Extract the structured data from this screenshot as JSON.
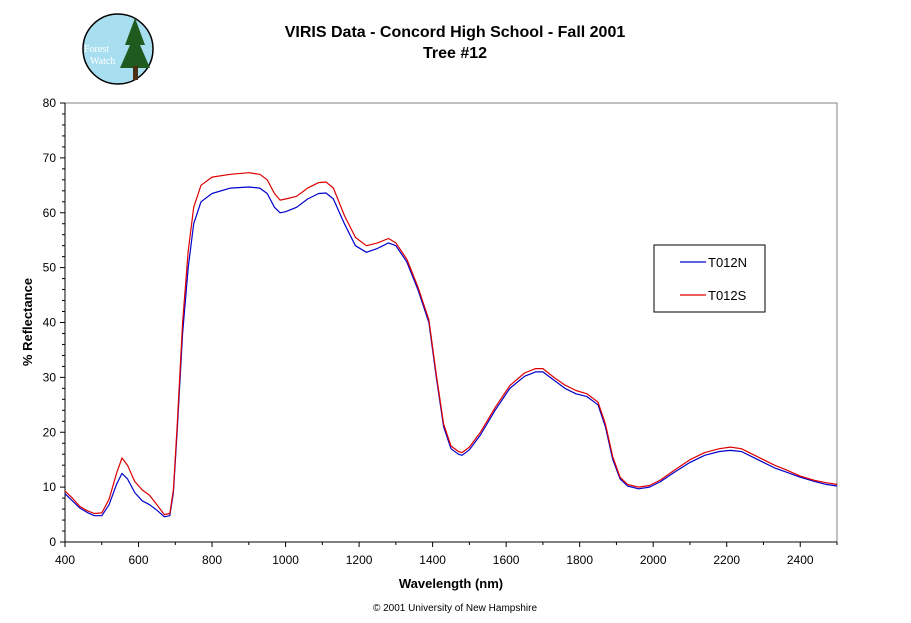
{
  "logo": {
    "line1": "Forest",
    "line2": "Watch"
  },
  "footer": {
    "copyright": "© 2001 University of New Hampshire"
  },
  "chart_data": {
    "type": "line",
    "title": "VIRIS Data - Concord High School - Fall 2001",
    "subtitle": "Tree #12",
    "xlabel": "Wavelength (nm)",
    "ylabel": "% Reflectance",
    "xlim": [
      400,
      2500
    ],
    "ylim": [
      0,
      80
    ],
    "xticks": [
      400,
      600,
      800,
      1000,
      1200,
      1400,
      1600,
      1800,
      2000,
      2200,
      2400
    ],
    "yticks": [
      0,
      10,
      20,
      30,
      40,
      50,
      60,
      70,
      80
    ],
    "grid": false,
    "legend": "right",
    "series": [
      {
        "name": "T012N",
        "color": "#0000cc",
        "points": [
          [
            400,
            8.8
          ],
          [
            420,
            7.5
          ],
          [
            440,
            6.2
          ],
          [
            460,
            5.4
          ],
          [
            480,
            4.8
          ],
          [
            500,
            4.8
          ],
          [
            520,
            6.8
          ],
          [
            540,
            10.5
          ],
          [
            555,
            12.5
          ],
          [
            570,
            11.5
          ],
          [
            590,
            9.0
          ],
          [
            610,
            7.5
          ],
          [
            630,
            6.8
          ],
          [
            650,
            5.8
          ],
          [
            670,
            4.6
          ],
          [
            685,
            4.8
          ],
          [
            695,
            9.0
          ],
          [
            705,
            20.0
          ],
          [
            720,
            38.0
          ],
          [
            735,
            50.0
          ],
          [
            750,
            58.0
          ],
          [
            770,
            62.0
          ],
          [
            800,
            63.5
          ],
          [
            850,
            64.5
          ],
          [
            900,
            64.7
          ],
          [
            930,
            64.5
          ],
          [
            950,
            63.5
          ],
          [
            970,
            61.0
          ],
          [
            985,
            60.0
          ],
          [
            1000,
            60.2
          ],
          [
            1030,
            61.0
          ],
          [
            1060,
            62.5
          ],
          [
            1090,
            63.5
          ],
          [
            1110,
            63.6
          ],
          [
            1130,
            62.5
          ],
          [
            1160,
            58.0
          ],
          [
            1190,
            54.0
          ],
          [
            1220,
            52.8
          ],
          [
            1250,
            53.5
          ],
          [
            1280,
            54.5
          ],
          [
            1300,
            54.0
          ],
          [
            1330,
            51.0
          ],
          [
            1360,
            46.0
          ],
          [
            1390,
            40.0
          ],
          [
            1410,
            30.0
          ],
          [
            1430,
            21.0
          ],
          [
            1450,
            17.0
          ],
          [
            1470,
            16.0
          ],
          [
            1480,
            15.8
          ],
          [
            1500,
            16.8
          ],
          [
            1530,
            19.5
          ],
          [
            1570,
            24.0
          ],
          [
            1610,
            28.0
          ],
          [
            1650,
            30.2
          ],
          [
            1680,
            31.0
          ],
          [
            1700,
            31.0
          ],
          [
            1730,
            29.5
          ],
          [
            1760,
            28.0
          ],
          [
            1790,
            27.0
          ],
          [
            1820,
            26.5
          ],
          [
            1850,
            25.0
          ],
          [
            1870,
            21.0
          ],
          [
            1890,
            15.0
          ],
          [
            1910,
            11.5
          ],
          [
            1930,
            10.2
          ],
          [
            1960,
            9.7
          ],
          [
            1990,
            10.0
          ],
          [
            2020,
            11.0
          ],
          [
            2060,
            12.8
          ],
          [
            2100,
            14.5
          ],
          [
            2140,
            15.8
          ],
          [
            2180,
            16.5
          ],
          [
            2210,
            16.7
          ],
          [
            2240,
            16.5
          ],
          [
            2270,
            15.5
          ],
          [
            2300,
            14.5
          ],
          [
            2330,
            13.5
          ],
          [
            2360,
            12.8
          ],
          [
            2400,
            11.8
          ],
          [
            2440,
            11.0
          ],
          [
            2470,
            10.5
          ],
          [
            2500,
            10.2
          ]
        ]
      },
      {
        "name": "T012S",
        "color": "#dd0000",
        "points": [
          [
            400,
            9.3
          ],
          [
            420,
            8.0
          ],
          [
            440,
            6.5
          ],
          [
            460,
            5.7
          ],
          [
            480,
            5.2
          ],
          [
            500,
            5.3
          ],
          [
            520,
            7.8
          ],
          [
            540,
            12.5
          ],
          [
            555,
            15.3
          ],
          [
            570,
            14.0
          ],
          [
            590,
            11.0
          ],
          [
            610,
            9.5
          ],
          [
            630,
            8.5
          ],
          [
            650,
            6.8
          ],
          [
            670,
            5.0
          ],
          [
            685,
            5.2
          ],
          [
            695,
            9.5
          ],
          [
            705,
            21.0
          ],
          [
            720,
            40.0
          ],
          [
            735,
            53.0
          ],
          [
            750,
            61.0
          ],
          [
            770,
            65.0
          ],
          [
            800,
            66.5
          ],
          [
            850,
            67.0
          ],
          [
            900,
            67.3
          ],
          [
            930,
            67.0
          ],
          [
            950,
            66.0
          ],
          [
            970,
            63.5
          ],
          [
            985,
            62.3
          ],
          [
            1000,
            62.5
          ],
          [
            1030,
            63.0
          ],
          [
            1060,
            64.5
          ],
          [
            1090,
            65.5
          ],
          [
            1110,
            65.6
          ],
          [
            1130,
            64.5
          ],
          [
            1160,
            59.5
          ],
          [
            1190,
            55.5
          ],
          [
            1220,
            54.0
          ],
          [
            1250,
            54.5
          ],
          [
            1280,
            55.3
          ],
          [
            1300,
            54.5
          ],
          [
            1330,
            51.5
          ],
          [
            1360,
            46.5
          ],
          [
            1390,
            40.5
          ],
          [
            1410,
            30.5
          ],
          [
            1430,
            21.5
          ],
          [
            1450,
            17.5
          ],
          [
            1470,
            16.5
          ],
          [
            1480,
            16.3
          ],
          [
            1500,
            17.3
          ],
          [
            1530,
            20.0
          ],
          [
            1570,
            24.5
          ],
          [
            1610,
            28.5
          ],
          [
            1650,
            30.8
          ],
          [
            1680,
            31.6
          ],
          [
            1700,
            31.6
          ],
          [
            1730,
            30.0
          ],
          [
            1760,
            28.6
          ],
          [
            1790,
            27.6
          ],
          [
            1820,
            27.0
          ],
          [
            1850,
            25.5
          ],
          [
            1870,
            21.5
          ],
          [
            1890,
            15.5
          ],
          [
            1910,
            11.8
          ],
          [
            1930,
            10.5
          ],
          [
            1960,
            10.0
          ],
          [
            1990,
            10.3
          ],
          [
            2020,
            11.3
          ],
          [
            2060,
            13.2
          ],
          [
            2100,
            15.0
          ],
          [
            2140,
            16.3
          ],
          [
            2180,
            17.0
          ],
          [
            2210,
            17.3
          ],
          [
            2240,
            17.0
          ],
          [
            2270,
            16.0
          ],
          [
            2300,
            15.0
          ],
          [
            2330,
            14.0
          ],
          [
            2360,
            13.2
          ],
          [
            2400,
            12.0
          ],
          [
            2440,
            11.2
          ],
          [
            2470,
            10.8
          ],
          [
            2500,
            10.5
          ]
        ]
      }
    ]
  }
}
